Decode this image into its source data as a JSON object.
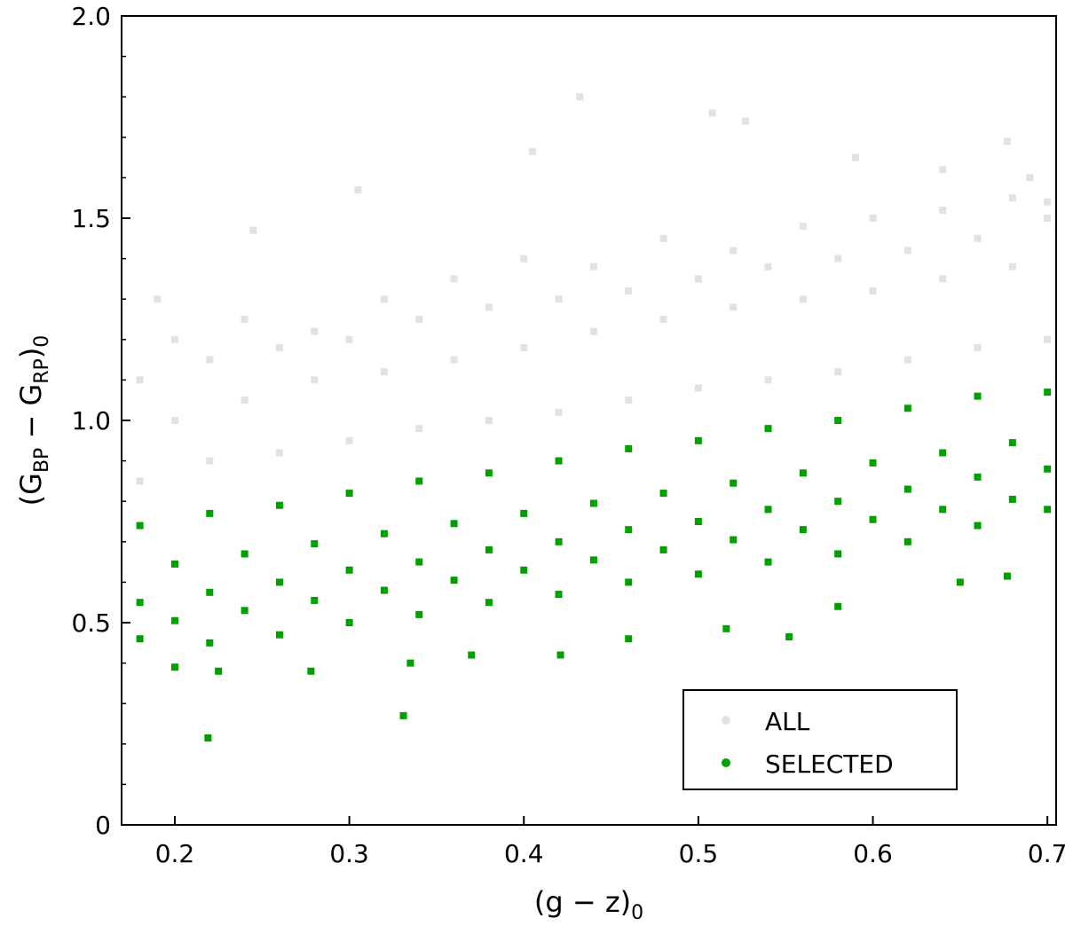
{
  "chart_data": {
    "type": "scatter",
    "xlabel_parts": [
      "(g − z)",
      "0"
    ],
    "ylabel_parts": [
      "(G",
      "BP",
      " − G",
      "RP",
      ")",
      "0"
    ],
    "xlim": [
      0.1695,
      0.705
    ],
    "ylim": [
      0,
      2
    ],
    "xticks": [
      0.2,
      0.3,
      0.4,
      0.5,
      0.6,
      0.7
    ],
    "yticks": [
      0,
      0.5,
      {
        "value": 1,
        "label": "1.0"
      },
      1.5,
      {
        "value": 2,
        "label": "2.0"
      }
    ],
    "yminorticks": [
      0.1,
      0.2,
      0.3,
      0.4,
      0.6,
      0.7,
      0.8,
      0.9,
      1.1,
      1.2,
      1.3,
      1.4,
      1.6,
      1.7,
      1.8,
      1.9
    ],
    "legend": "lower right",
    "series": [
      {
        "name": "ALL",
        "color": "#e2e2e2",
        "x": [
          0.432,
          0.508,
          0.527,
          0.677,
          0.305,
          0.405,
          0.245,
          0.19,
          0.59,
          0.64,
          0.69,
          0.7,
          0.18,
          0.22,
          0.26,
          0.3,
          0.34,
          0.38,
          0.42,
          0.46,
          0.5,
          0.54,
          0.58,
          0.62,
          0.66,
          0.7,
          0.18,
          0.22,
          0.26,
          0.3,
          0.34,
          0.38,
          0.42,
          0.46,
          0.5,
          0.54,
          0.58,
          0.62,
          0.66,
          0.7,
          0.2,
          0.24,
          0.28,
          0.32,
          0.36,
          0.4,
          0.44,
          0.48,
          0.52,
          0.56,
          0.6,
          0.64,
          0.68,
          0.2,
          0.24,
          0.28,
          0.32,
          0.36,
          0.4,
          0.44,
          0.48,
          0.52,
          0.56,
          0.6,
          0.64,
          0.68
        ],
        "values": [
          1.8,
          1.76,
          1.74,
          1.69,
          1.57,
          1.665,
          1.47,
          1.3,
          1.65,
          1.62,
          1.6,
          1.54,
          0.85,
          0.9,
          0.92,
          0.95,
          0.98,
          1.0,
          1.02,
          1.05,
          1.08,
          1.1,
          1.12,
          1.15,
          1.18,
          1.2,
          1.1,
          1.15,
          1.18,
          1.2,
          1.25,
          1.28,
          1.3,
          1.32,
          1.35,
          1.38,
          1.4,
          1.42,
          1.45,
          1.5,
          1.0,
          1.05,
          1.1,
          1.12,
          1.15,
          1.18,
          1.22,
          1.25,
          1.28,
          1.3,
          1.32,
          1.35,
          1.38,
          1.2,
          1.25,
          1.22,
          1.3,
          1.35,
          1.4,
          1.38,
          1.45,
          1.42,
          1.48,
          1.5,
          1.52,
          1.55
        ]
      },
      {
        "name": "SELECTED",
        "color": "#00a000",
        "x": [
          0.219,
          0.331,
          0.421,
          0.516,
          0.552,
          0.677,
          0.2,
          0.225,
          0.278,
          0.335,
          0.37,
          0.46,
          0.58,
          0.65,
          0.18,
          0.22,
          0.26,
          0.3,
          0.34,
          0.38,
          0.42,
          0.46,
          0.5,
          0.54,
          0.58,
          0.62,
          0.66,
          0.7,
          0.18,
          0.22,
          0.26,
          0.3,
          0.34,
          0.38,
          0.42,
          0.46,
          0.5,
          0.54,
          0.58,
          0.62,
          0.66,
          0.7,
          0.18,
          0.22,
          0.26,
          0.3,
          0.34,
          0.38,
          0.42,
          0.46,
          0.5,
          0.54,
          0.58,
          0.62,
          0.66,
          0.7,
          0.2,
          0.24,
          0.28,
          0.32,
          0.36,
          0.4,
          0.44,
          0.48,
          0.52,
          0.56,
          0.6,
          0.64,
          0.68,
          0.2,
          0.24,
          0.28,
          0.32,
          0.36,
          0.4,
          0.44,
          0.48,
          0.52,
          0.56,
          0.6,
          0.64,
          0.68
        ],
        "values": [
          0.215,
          0.27,
          0.42,
          0.485,
          0.465,
          0.615,
          0.39,
          0.38,
          0.38,
          0.4,
          0.42,
          0.46,
          0.54,
          0.6,
          0.55,
          0.575,
          0.6,
          0.63,
          0.65,
          0.68,
          0.7,
          0.73,
          0.75,
          0.78,
          0.8,
          0.83,
          0.86,
          0.88,
          0.74,
          0.77,
          0.79,
          0.82,
          0.85,
          0.87,
          0.9,
          0.93,
          0.95,
          0.98,
          1.0,
          1.03,
          1.06,
          1.07,
          0.46,
          0.45,
          0.47,
          0.5,
          0.52,
          0.55,
          0.57,
          0.6,
          0.62,
          0.65,
          0.67,
          0.7,
          0.74,
          0.78,
          0.645,
          0.67,
          0.695,
          0.72,
          0.745,
          0.77,
          0.795,
          0.82,
          0.845,
          0.87,
          0.895,
          0.92,
          0.945,
          0.505,
          0.53,
          0.555,
          0.58,
          0.605,
          0.63,
          0.655,
          0.68,
          0.705,
          0.73,
          0.755,
          0.78,
          0.805
        ]
      }
    ]
  }
}
